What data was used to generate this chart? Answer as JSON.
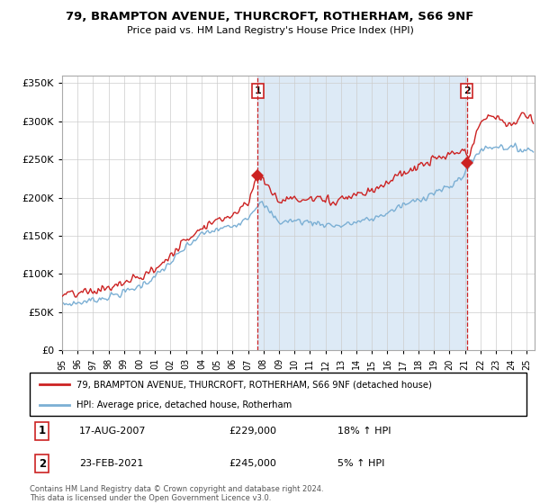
{
  "title": "79, BRAMPTON AVENUE, THURCROFT, ROTHERHAM, S66 9NF",
  "subtitle": "Price paid vs. HM Land Registry's House Price Index (HPI)",
  "legend_line1": "79, BRAMPTON AVENUE, THURCROFT, ROTHERHAM, S66 9NF (detached house)",
  "legend_line2": "HPI: Average price, detached house, Rotherham",
  "sale1_label": "1",
  "sale1_date": "17-AUG-2007",
  "sale1_price": "£229,000",
  "sale1_hpi": "18% ↑ HPI",
  "sale1_year": 2007.625,
  "sale1_value": 229000,
  "sale2_label": "2",
  "sale2_date": "23-FEB-2021",
  "sale2_price": "£245,000",
  "sale2_hpi": "5% ↑ HPI",
  "sale2_year": 2021.13,
  "sale2_value": 245000,
  "hpi_color": "#7bafd4",
  "hpi_fill_color": "#ddeaf6",
  "price_color": "#cc2222",
  "annotation_color": "#cc2222",
  "grid_color": "#cccccc",
  "background_color": "#ffffff",
  "footer": "Contains HM Land Registry data © Crown copyright and database right 2024.\nThis data is licensed under the Open Government Licence v3.0.",
  "ylim": [
    0,
    360000
  ],
  "xlim_start": 1995.0,
  "xlim_end": 2025.5
}
